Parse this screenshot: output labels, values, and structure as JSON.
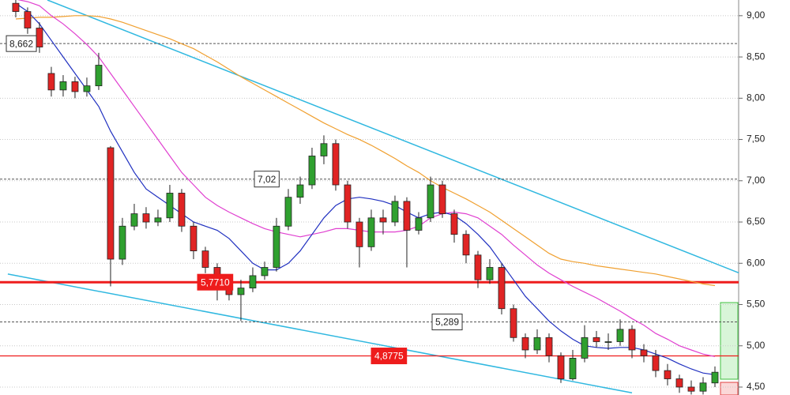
{
  "chart_data": {
    "type": "candlestick",
    "xlim": [
      -1.33,
      61
    ],
    "ylim": [
      4.404,
      9.19
    ],
    "yticks": [
      {
        "value": 4.5,
        "label": "4,50"
      },
      {
        "value": 5.0,
        "label": "5,00"
      },
      {
        "value": 5.5,
        "label": "5,50"
      },
      {
        "value": 6.0,
        "label": "6,00"
      },
      {
        "value": 6.5,
        "label": "6,50"
      },
      {
        "value": 7.0,
        "label": "7,00"
      },
      {
        "value": 7.5,
        "label": "7,50"
      },
      {
        "value": 8.0,
        "label": "8,00"
      },
      {
        "value": 8.5,
        "label": "8,50"
      },
      {
        "value": 9.0,
        "label": "9,00"
      }
    ],
    "grid": true,
    "up_color": "#2fa02f",
    "down_color": "#e02424",
    "open": [
      9.15,
      9.05,
      8.85,
      8.3,
      8.1,
      8.2,
      8.08,
      8.15,
      7.4,
      6.05,
      6.45,
      6.6,
      6.5,
      6.55,
      6.85,
      6.45,
      6.15,
      5.95,
      5.8,
      5.62,
      5.7,
      5.85,
      5.95,
      6.45,
      6.8,
      6.95,
      7.3,
      7.45,
      6.95,
      6.5,
      6.2,
      6.55,
      6.5,
      6.75,
      6.4,
      6.55,
      6.95,
      6.6,
      6.35,
      6.1,
      5.8,
      5.95,
      5.45,
      5.1,
      4.95,
      5.1,
      4.88,
      4.6,
      4.85,
      5.1,
      5.05,
      5.05,
      5.2,
      4.95,
      4.88,
      4.7,
      4.6,
      4.5,
      4.45,
      4.55
    ],
    "high": [
      9.2,
      9.1,
      8.92,
      8.38,
      8.28,
      8.26,
      8.25,
      8.55,
      7.42,
      6.55,
      6.72,
      6.68,
      6.65,
      6.95,
      6.9,
      6.5,
      6.2,
      6.0,
      5.85,
      5.8,
      5.95,
      6.02,
      6.55,
      6.9,
      7.05,
      7.4,
      7.55,
      7.5,
      7.0,
      6.55,
      6.65,
      6.65,
      6.82,
      6.8,
      6.62,
      7.05,
      7.0,
      6.65,
      6.4,
      6.15,
      6.05,
      6.0,
      5.5,
      5.15,
      5.2,
      5.15,
      4.92,
      4.95,
      5.25,
      5.18,
      5.15,
      5.32,
      5.25,
      5.02,
      4.95,
      4.78,
      4.65,
      4.58,
      4.62,
      4.75
    ],
    "low": [
      8.98,
      8.78,
      8.55,
      8.02,
      8.02,
      8.0,
      8.02,
      8.1,
      5.72,
      5.98,
      6.4,
      6.42,
      6.45,
      6.5,
      6.38,
      6.05,
      5.88,
      5.55,
      5.55,
      5.3,
      5.65,
      5.8,
      5.9,
      6.4,
      6.72,
      6.9,
      7.2,
      6.88,
      6.42,
      5.95,
      6.15,
      6.35,
      6.45,
      5.95,
      6.35,
      6.5,
      6.55,
      6.25,
      6.0,
      5.7,
      5.75,
      5.38,
      5.05,
      4.85,
      4.9,
      4.8,
      4.55,
      4.58,
      4.8,
      4.98,
      4.95,
      5.0,
      4.85,
      4.8,
      4.62,
      4.52,
      4.43,
      4.41,
      4.41,
      4.5
    ],
    "close": [
      9.05,
      8.85,
      8.62,
      8.1,
      8.2,
      8.08,
      8.15,
      8.4,
      6.05,
      6.45,
      6.6,
      6.5,
      6.55,
      6.85,
      6.45,
      6.15,
      5.95,
      5.8,
      5.62,
      5.7,
      5.85,
      5.95,
      6.45,
      6.8,
      6.95,
      7.3,
      7.45,
      6.95,
      6.5,
      6.2,
      6.55,
      6.5,
      6.75,
      6.4,
      6.55,
      6.95,
      6.6,
      6.35,
      6.1,
      5.8,
      5.95,
      5.45,
      5.1,
      4.95,
      5.1,
      4.88,
      4.6,
      4.85,
      5.1,
      5.05,
      5.05,
      5.2,
      4.95,
      4.88,
      4.7,
      4.6,
      4.5,
      4.45,
      4.55,
      4.68
    ],
    "overlays": [
      {
        "color": "#f0a030",
        "values": [
          8.96,
          8.97,
          8.98,
          8.98,
          8.99,
          9.0,
          9.0,
          8.99,
          8.96,
          8.92,
          8.87,
          8.82,
          8.77,
          8.72,
          8.66,
          8.6,
          8.52,
          8.44,
          8.35,
          8.26,
          8.18,
          8.1,
          8.02,
          7.94,
          7.86,
          7.78,
          7.7,
          7.63,
          7.56,
          7.5,
          7.43,
          7.35,
          7.27,
          7.18,
          7.1,
          7.0,
          6.92,
          6.85,
          6.78,
          6.7,
          6.62,
          6.52,
          6.42,
          6.32,
          6.22,
          6.12,
          6.05,
          6.02,
          6.0,
          5.97,
          5.95,
          5.93,
          5.91,
          5.89,
          5.87,
          5.84,
          5.81,
          5.78,
          5.75,
          5.73
        ]
      },
      {
        "color": "#e040d0",
        "values": [
          9.2,
          9.17,
          9.12,
          9.0,
          8.9,
          8.78,
          8.65,
          8.5,
          8.3,
          8.1,
          7.9,
          7.7,
          7.5,
          7.3,
          7.1,
          6.95,
          6.8,
          6.7,
          6.62,
          6.55,
          6.48,
          6.42,
          6.38,
          6.35,
          6.32,
          6.35,
          6.38,
          6.42,
          6.42,
          6.4,
          6.38,
          6.38,
          6.38,
          6.4,
          6.45,
          6.55,
          6.6,
          6.62,
          6.6,
          6.55,
          6.45,
          6.35,
          6.22,
          6.1,
          5.98,
          5.88,
          5.8,
          5.72,
          5.65,
          5.58,
          5.5,
          5.42,
          5.33,
          5.25,
          5.15,
          5.08,
          5.0,
          4.95,
          4.9,
          4.87
        ]
      },
      {
        "color": "#2030c0",
        "values": [
          9.15,
          9.05,
          8.9,
          8.7,
          8.5,
          8.3,
          8.1,
          7.9,
          7.6,
          7.35,
          7.1,
          6.9,
          6.8,
          6.7,
          6.6,
          6.5,
          6.45,
          6.4,
          6.3,
          6.15,
          6.0,
          5.92,
          5.92,
          6.0,
          6.15,
          6.35,
          6.55,
          6.7,
          6.78,
          6.8,
          6.78,
          6.75,
          6.7,
          6.62,
          6.55,
          6.6,
          6.62,
          6.58,
          6.48,
          6.35,
          6.2,
          6.0,
          5.8,
          5.6,
          5.45,
          5.3,
          5.18,
          5.08,
          5.0,
          4.98,
          4.97,
          4.98,
          4.98,
          4.95,
          4.9,
          4.85,
          4.78,
          4.72,
          4.67,
          4.65
        ]
      }
    ],
    "trendlines": [
      {
        "color": "#30b8e0",
        "start": [
          2.67,
          9.19
        ],
        "end": [
          61,
          5.885
        ]
      },
      {
        "color": "#30b8e0",
        "start": [
          -0.67,
          5.87
        ],
        "end": [
          52,
          4.43
        ]
      }
    ],
    "levels": [
      {
        "value": 8.662,
        "label": "8,662",
        "color": "#555555",
        "style": "dashed",
        "box": "#ffffff"
      },
      {
        "value": 7.02,
        "label": "7,02",
        "color": "#555555",
        "style": "dashed",
        "box": "#ffffff"
      },
      {
        "value": 5.771,
        "label": "5,7710",
        "color": "#ee1c1c",
        "style": "thick",
        "box": "#ee1c1c"
      },
      {
        "value": 5.289,
        "label": "5,289",
        "color": "#555555",
        "style": "dashed",
        "box": "#ffffff"
      },
      {
        "value": 4.8775,
        "label": "4,8775",
        "color": "#ee1c1c",
        "style": "thin",
        "box": "#ee1c1c"
      }
    ]
  }
}
